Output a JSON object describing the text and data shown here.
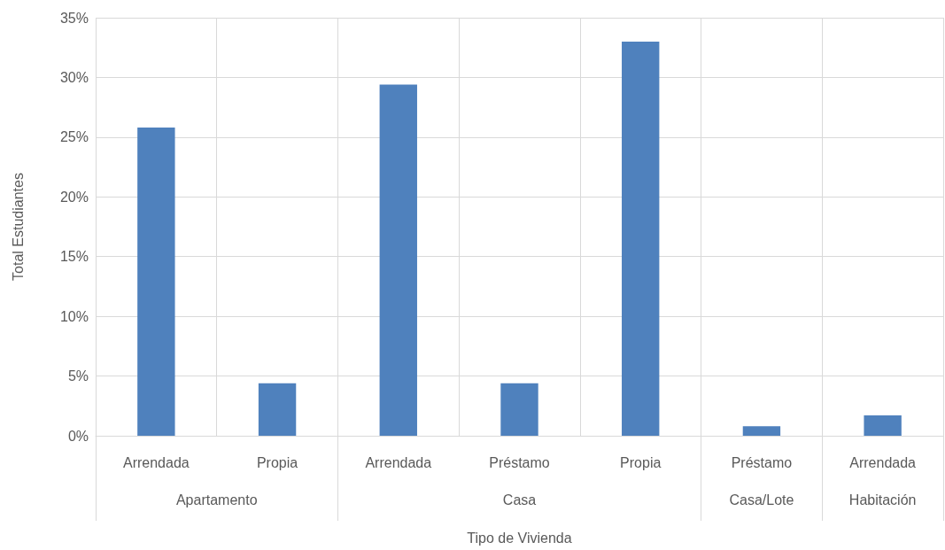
{
  "chart_data": {
    "type": "bar",
    "xlabel": "Tipo de Vivienda",
    "ylabel": "Total Estudiantes",
    "categories": [
      "Arrendada",
      "Propia",
      "Arrendada",
      "Préstamo",
      "Propia",
      "Préstamo",
      "Arrendada"
    ],
    "values": [
      25.8,
      4.4,
      29.4,
      4.4,
      33.0,
      0.8,
      1.7
    ],
    "color": "#4f81bd",
    "annotations": [
      "Apartamento",
      "Casa",
      "Casa/Lote",
      "Habitación"
    ],
    "ylim": [
      0,
      35
    ],
    "yticks": [
      {
        "value": 0,
        "label": "0%"
      },
      {
        "value": 5,
        "label": "5%"
      },
      {
        "value": 10,
        "label": "10%"
      },
      {
        "value": 15,
        "label": "15%"
      },
      {
        "value": 20,
        "label": "20%"
      },
      {
        "value": 25,
        "label": "25%"
      },
      {
        "value": 30,
        "label": "30%"
      },
      {
        "value": 35,
        "label": "35%"
      }
    ],
    "grid": true
  }
}
